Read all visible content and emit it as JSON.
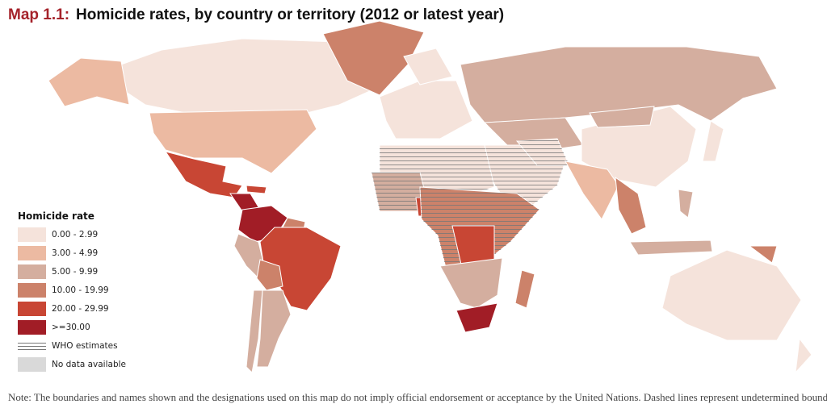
{
  "title": {
    "number": "Map 1.1:",
    "text": "Homicide rates, by country or territory (2012 or latest year)"
  },
  "legend": {
    "title": "Homicide rate",
    "items": [
      {
        "label": "0.00 - 2.99",
        "color": "#f5e3db"
      },
      {
        "label": "3.00 - 4.99",
        "color": "#ecbaa2"
      },
      {
        "label": "5.00 - 9.99",
        "color": "#d4ae9f"
      },
      {
        "label": "10.00 - 19.99",
        "color": "#cc826a"
      },
      {
        "label": "20.00 - 29.99",
        "color": "#c84634"
      },
      {
        "label": ">=30.00",
        "color": "#a11d26"
      },
      {
        "label": "WHO estimates",
        "color": "hatched"
      },
      {
        "label": "No data available",
        "color": "#d9d9d9"
      }
    ]
  },
  "note": "Note: The boundaries and names shown and the designations used on this map do not imply official endorsement or acceptance by the United Nations. Dashed lines represent undetermined boundaries."
}
